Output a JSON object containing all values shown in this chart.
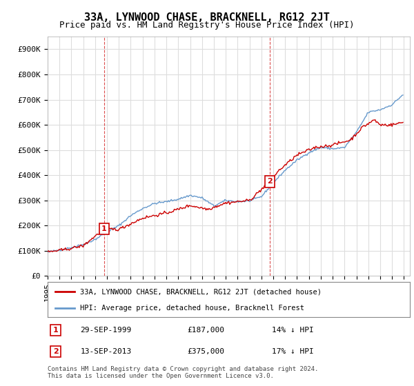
{
  "title": "33A, LYNWOOD CHASE, BRACKNELL, RG12 2JT",
  "subtitle": "Price paid vs. HM Land Registry's House Price Index (HPI)",
  "ylabel_ticks": [
    "£0",
    "£100K",
    "£200K",
    "£300K",
    "£400K",
    "£500K",
    "£600K",
    "£700K",
    "£800K",
    "£900K"
  ],
  "ytick_values": [
    0,
    100000,
    200000,
    300000,
    400000,
    500000,
    600000,
    700000,
    800000,
    900000
  ],
  "ylim": [
    0,
    950000
  ],
  "xlim_start": 1995.0,
  "xlim_end": 2025.5,
  "hpi_color": "#6699cc",
  "price_color": "#cc0000",
  "marker1_x": 1999.75,
  "marker1_y": 187000,
  "marker1_label": "1",
  "marker2_x": 2013.71,
  "marker2_y": 375000,
  "marker2_label": "2",
  "vline1_x": 1999.75,
  "vline2_x": 2013.71,
  "legend_label_price": "33A, LYNWOOD CHASE, BRACKNELL, RG12 2JT (detached house)",
  "legend_label_hpi": "HPI: Average price, detached house, Bracknell Forest",
  "annotation1_date": "29-SEP-1999",
  "annotation1_price": "£187,000",
  "annotation1_hpi": "14% ↓ HPI",
  "annotation2_date": "13-SEP-2013",
  "annotation2_price": "£375,000",
  "annotation2_hpi": "17% ↓ HPI",
  "footer": "Contains HM Land Registry data © Crown copyright and database right 2024.\nThis data is licensed under the Open Government Licence v3.0.",
  "background_color": "#ffffff",
  "grid_color": "#dddddd",
  "title_fontsize": 11,
  "subtitle_fontsize": 9,
  "tick_fontsize": 8,
  "hpi_anchors_x": [
    1995.0,
    1996.0,
    1997.0,
    1998.0,
    1999.0,
    2000.0,
    2001.0,
    2002.0,
    2003.0,
    2004.0,
    2005.0,
    2006.0,
    2007.0,
    2008.0,
    2009.0,
    2010.0,
    2011.0,
    2012.0,
    2013.0,
    2014.0,
    2015.0,
    2016.0,
    2017.0,
    2018.0,
    2019.0,
    2020.0,
    2021.0,
    2022.0,
    2023.0,
    2024.0,
    2024.92
  ],
  "hpi_anchors_y": [
    95000,
    103000,
    113000,
    125000,
    145000,
    175000,
    200000,
    240000,
    268000,
    288000,
    295000,
    305000,
    320000,
    310000,
    278000,
    300000,
    295000,
    298000,
    315000,
    370000,
    420000,
    460000,
    490000,
    510000,
    505000,
    510000,
    570000,
    650000,
    660000,
    680000,
    720000
  ],
  "price_anchors_x": [
    1995.0,
    1996.5,
    1998.0,
    1999.75,
    2001.0,
    2003.0,
    2005.0,
    2007.0,
    2008.5,
    2010.0,
    2012.0,
    2013.71,
    2014.5,
    2016.0,
    2017.5,
    2019.0,
    2020.5,
    2021.5,
    2022.5,
    2023.0,
    2024.0,
    2024.92
  ],
  "price_anchors_y": [
    95000,
    105000,
    120000,
    187000,
    185000,
    230000,
    250000,
    280000,
    265000,
    290000,
    300000,
    375000,
    420000,
    480000,
    510000,
    520000,
    540000,
    590000,
    620000,
    600000,
    600000,
    610000
  ],
  "hpi_noise_scale": 2000,
  "price_noise_scale": 3000
}
